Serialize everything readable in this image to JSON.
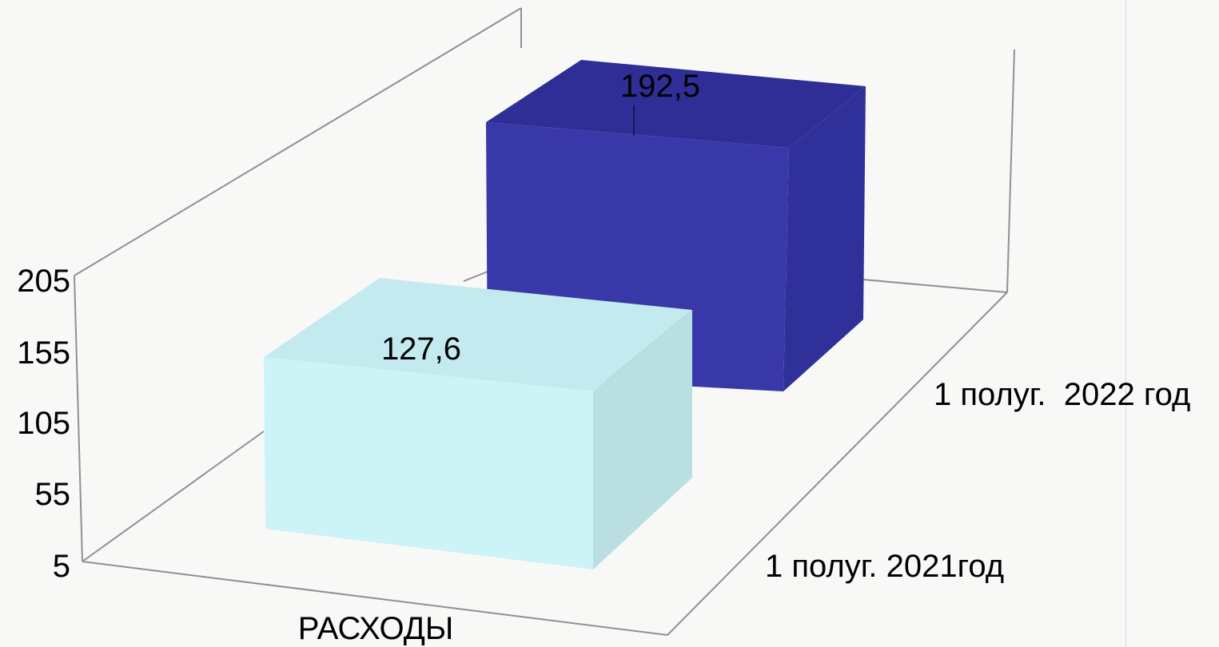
{
  "chart_data": {
    "type": "bar",
    "categories": [
      "РАСХОДЫ"
    ],
    "series": [
      {
        "name": "1 полуг. 2021год",
        "values": [
          127.6
        ],
        "value_label": "127,6",
        "color": "#c8f2f5"
      },
      {
        "name": "1 полуг.  2022 год",
        "values": [
          192.5
        ],
        "value_label": "192,5",
        "color": "#3535a3"
      }
    ],
    "y_ticks": [
      "205",
      "155",
      "105",
      "55",
      "5"
    ],
    "ylim": [
      5,
      205
    ],
    "grid": false,
    "legend": "none",
    "three_d": true
  }
}
